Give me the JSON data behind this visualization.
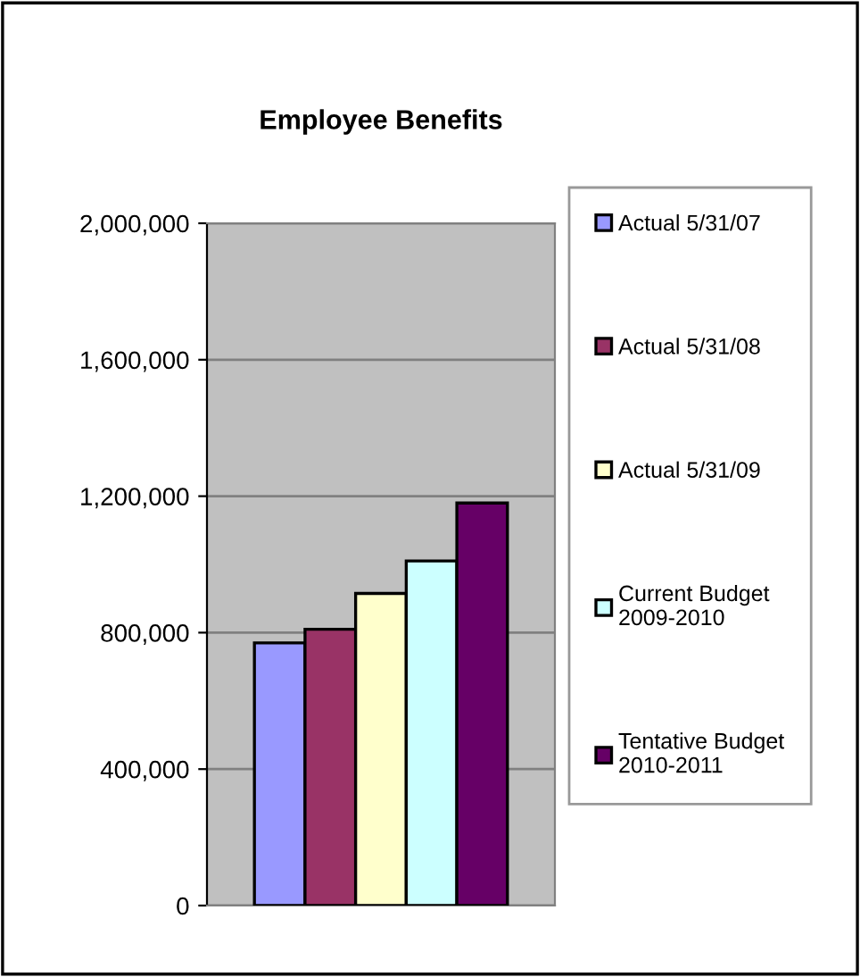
{
  "chart_data": {
    "type": "bar",
    "title": "Employee Benefits",
    "categories": [
      null
    ],
    "series": [
      {
        "name": "Actual 5/31/07",
        "color": "#9999ff",
        "values": [
          770000
        ]
      },
      {
        "name": "Actual 5/31/08",
        "color": "#993366",
        "values": [
          810000
        ]
      },
      {
        "name": "Actual 5/31/09",
        "color": "#ffffcc",
        "values": [
          915000
        ]
      },
      {
        "name": "Current Budget\n2009-2010",
        "color": "#ccffff",
        "values": [
          1010000
        ]
      },
      {
        "name": "Tentative Budget\n2010-2011",
        "color": "#660066",
        "values": [
          1180000
        ]
      }
    ],
    "ylim": [
      0,
      2000000
    ],
    "yticks": [
      {
        "value": 0,
        "label": "0"
      },
      {
        "value": 400000,
        "label": "400,000"
      },
      {
        "value": 800000,
        "label": "800,000"
      },
      {
        "value": 1200000,
        "label": "1,200,000"
      },
      {
        "value": 1600000,
        "label": "1,600,000"
      },
      {
        "value": 2000000,
        "label": "2,000,000"
      }
    ],
    "grid": "y",
    "legend": "right"
  }
}
